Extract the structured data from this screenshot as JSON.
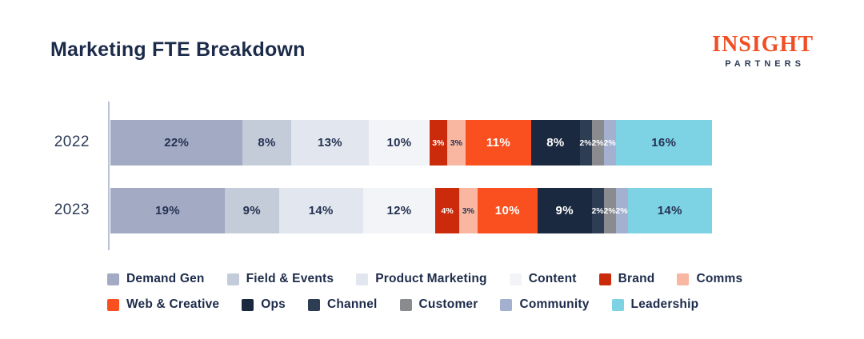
{
  "title": "Marketing FTE Breakdown",
  "logo": {
    "primary": "INSIGHT",
    "secondary": "PARTNERS",
    "primary_color": "#f04e24",
    "secondary_color": "#2b3a52"
  },
  "colors": {
    "title_text": "#1c2b4a",
    "year_label_text": "#2e3c58",
    "axis_line": "#b9c3d6",
    "dark_label": "#253352",
    "light_label": "#ffffff",
    "background": "#ffffff"
  },
  "chart_data": {
    "type": "bar",
    "orientation": "horizontal-stacked",
    "unit": "%",
    "title": "Marketing FTE Breakdown",
    "categories": [
      "2022",
      "2023"
    ],
    "xlim": [
      0,
      100
    ],
    "grid": false,
    "legend_position": "bottom",
    "series": [
      {
        "name": "Demand Gen",
        "values": [
          22,
          19
        ],
        "color": "#a3aac4",
        "label_style": "dark"
      },
      {
        "name": "Field & Events",
        "values": [
          8,
          9
        ],
        "color": "#c4cbd9",
        "label_style": "dark"
      },
      {
        "name": "Product Marketing",
        "values": [
          13,
          14
        ],
        "color": "#e2e7ef",
        "label_style": "dark"
      },
      {
        "name": "Content",
        "values": [
          10,
          12
        ],
        "color": "#f2f4f7",
        "label_style": "dark"
      },
      {
        "name": "Brand",
        "values": [
          3,
          4
        ],
        "color": "#cb2b0b",
        "label_style": "light"
      },
      {
        "name": "Comms",
        "values": [
          3,
          3
        ],
        "color": "#f9b7a2",
        "label_style": "dark"
      },
      {
        "name": "Web & Creative",
        "values": [
          11,
          10
        ],
        "color": "#fa4f1e",
        "label_style": "light"
      },
      {
        "name": "Ops",
        "values": [
          8,
          9
        ],
        "color": "#1b2940",
        "label_style": "light"
      },
      {
        "name": "Channel",
        "values": [
          2,
          2
        ],
        "color": "#2d3e54",
        "label_style": "light"
      },
      {
        "name": "Customer",
        "values": [
          2,
          2
        ],
        "color": "#8a8b8e",
        "label_style": "light"
      },
      {
        "name": "Community",
        "values": [
          2,
          2
        ],
        "color": "#a4b0cf",
        "label_style": "light"
      },
      {
        "name": "Leadership",
        "values": [
          16,
          14
        ],
        "color": "#7dd2e4",
        "label_style": "dark"
      }
    ],
    "legend_rows": [
      [
        "Demand Gen",
        "Field & Events",
        "Product Marketing",
        "Content",
        "Brand",
        "Comms"
      ],
      [
        "Web & Creative",
        "Ops",
        "Channel",
        "Customer",
        "Community",
        "Leadership"
      ]
    ]
  }
}
